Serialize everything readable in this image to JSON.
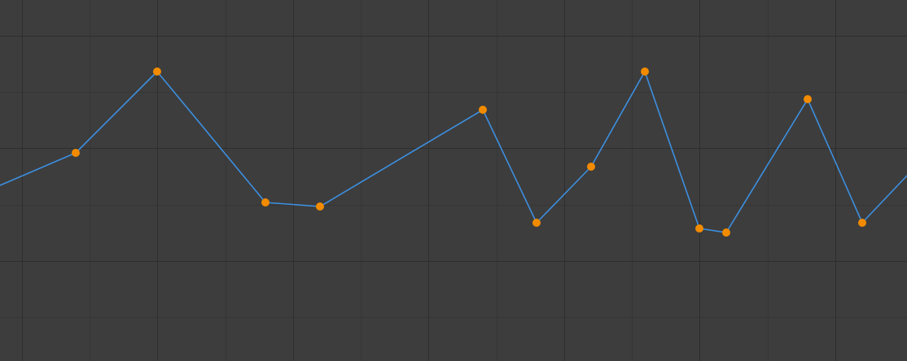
{
  "editor": {
    "background_color": "#3d3d3d",
    "minor_grid_color": "#363636",
    "major_grid_color": "#2e2e2e",
    "curve_color": "#3d8fe0",
    "keyframe_color": "#f28b00"
  },
  "chart_data": {
    "type": "line",
    "title": "",
    "xlabel": "",
    "ylabel": "",
    "grid": true,
    "xlim": [
      0,
      1114
    ],
    "ylim": [
      0,
      444
    ],
    "curve_start": [
      0,
      216
    ],
    "curve_end": [
      1114,
      228
    ],
    "keyframes": [
      {
        "x": 93,
        "y": 256
      },
      {
        "x": 193,
        "y": 356
      },
      {
        "x": 326,
        "y": 195
      },
      {
        "x": 393,
        "y": 190
      },
      {
        "x": 593,
        "y": 309
      },
      {
        "x": 659,
        "y": 170
      },
      {
        "x": 726,
        "y": 239
      },
      {
        "x": 792,
        "y": 356
      },
      {
        "x": 859,
        "y": 163
      },
      {
        "x": 892,
        "y": 158
      },
      {
        "x": 992,
        "y": 322
      },
      {
        "x": 1059,
        "y": 170
      }
    ],
    "major_x_ticks": [
      27,
      193,
      360,
      526,
      693,
      859,
      1026
    ],
    "minor_x_ticks": [
      110,
      277,
      443,
      610,
      776,
      943
    ],
    "major_y_ticks": [
      123,
      262,
      400
    ],
    "minor_y_ticks": [
      54,
      192,
      331
    ]
  }
}
